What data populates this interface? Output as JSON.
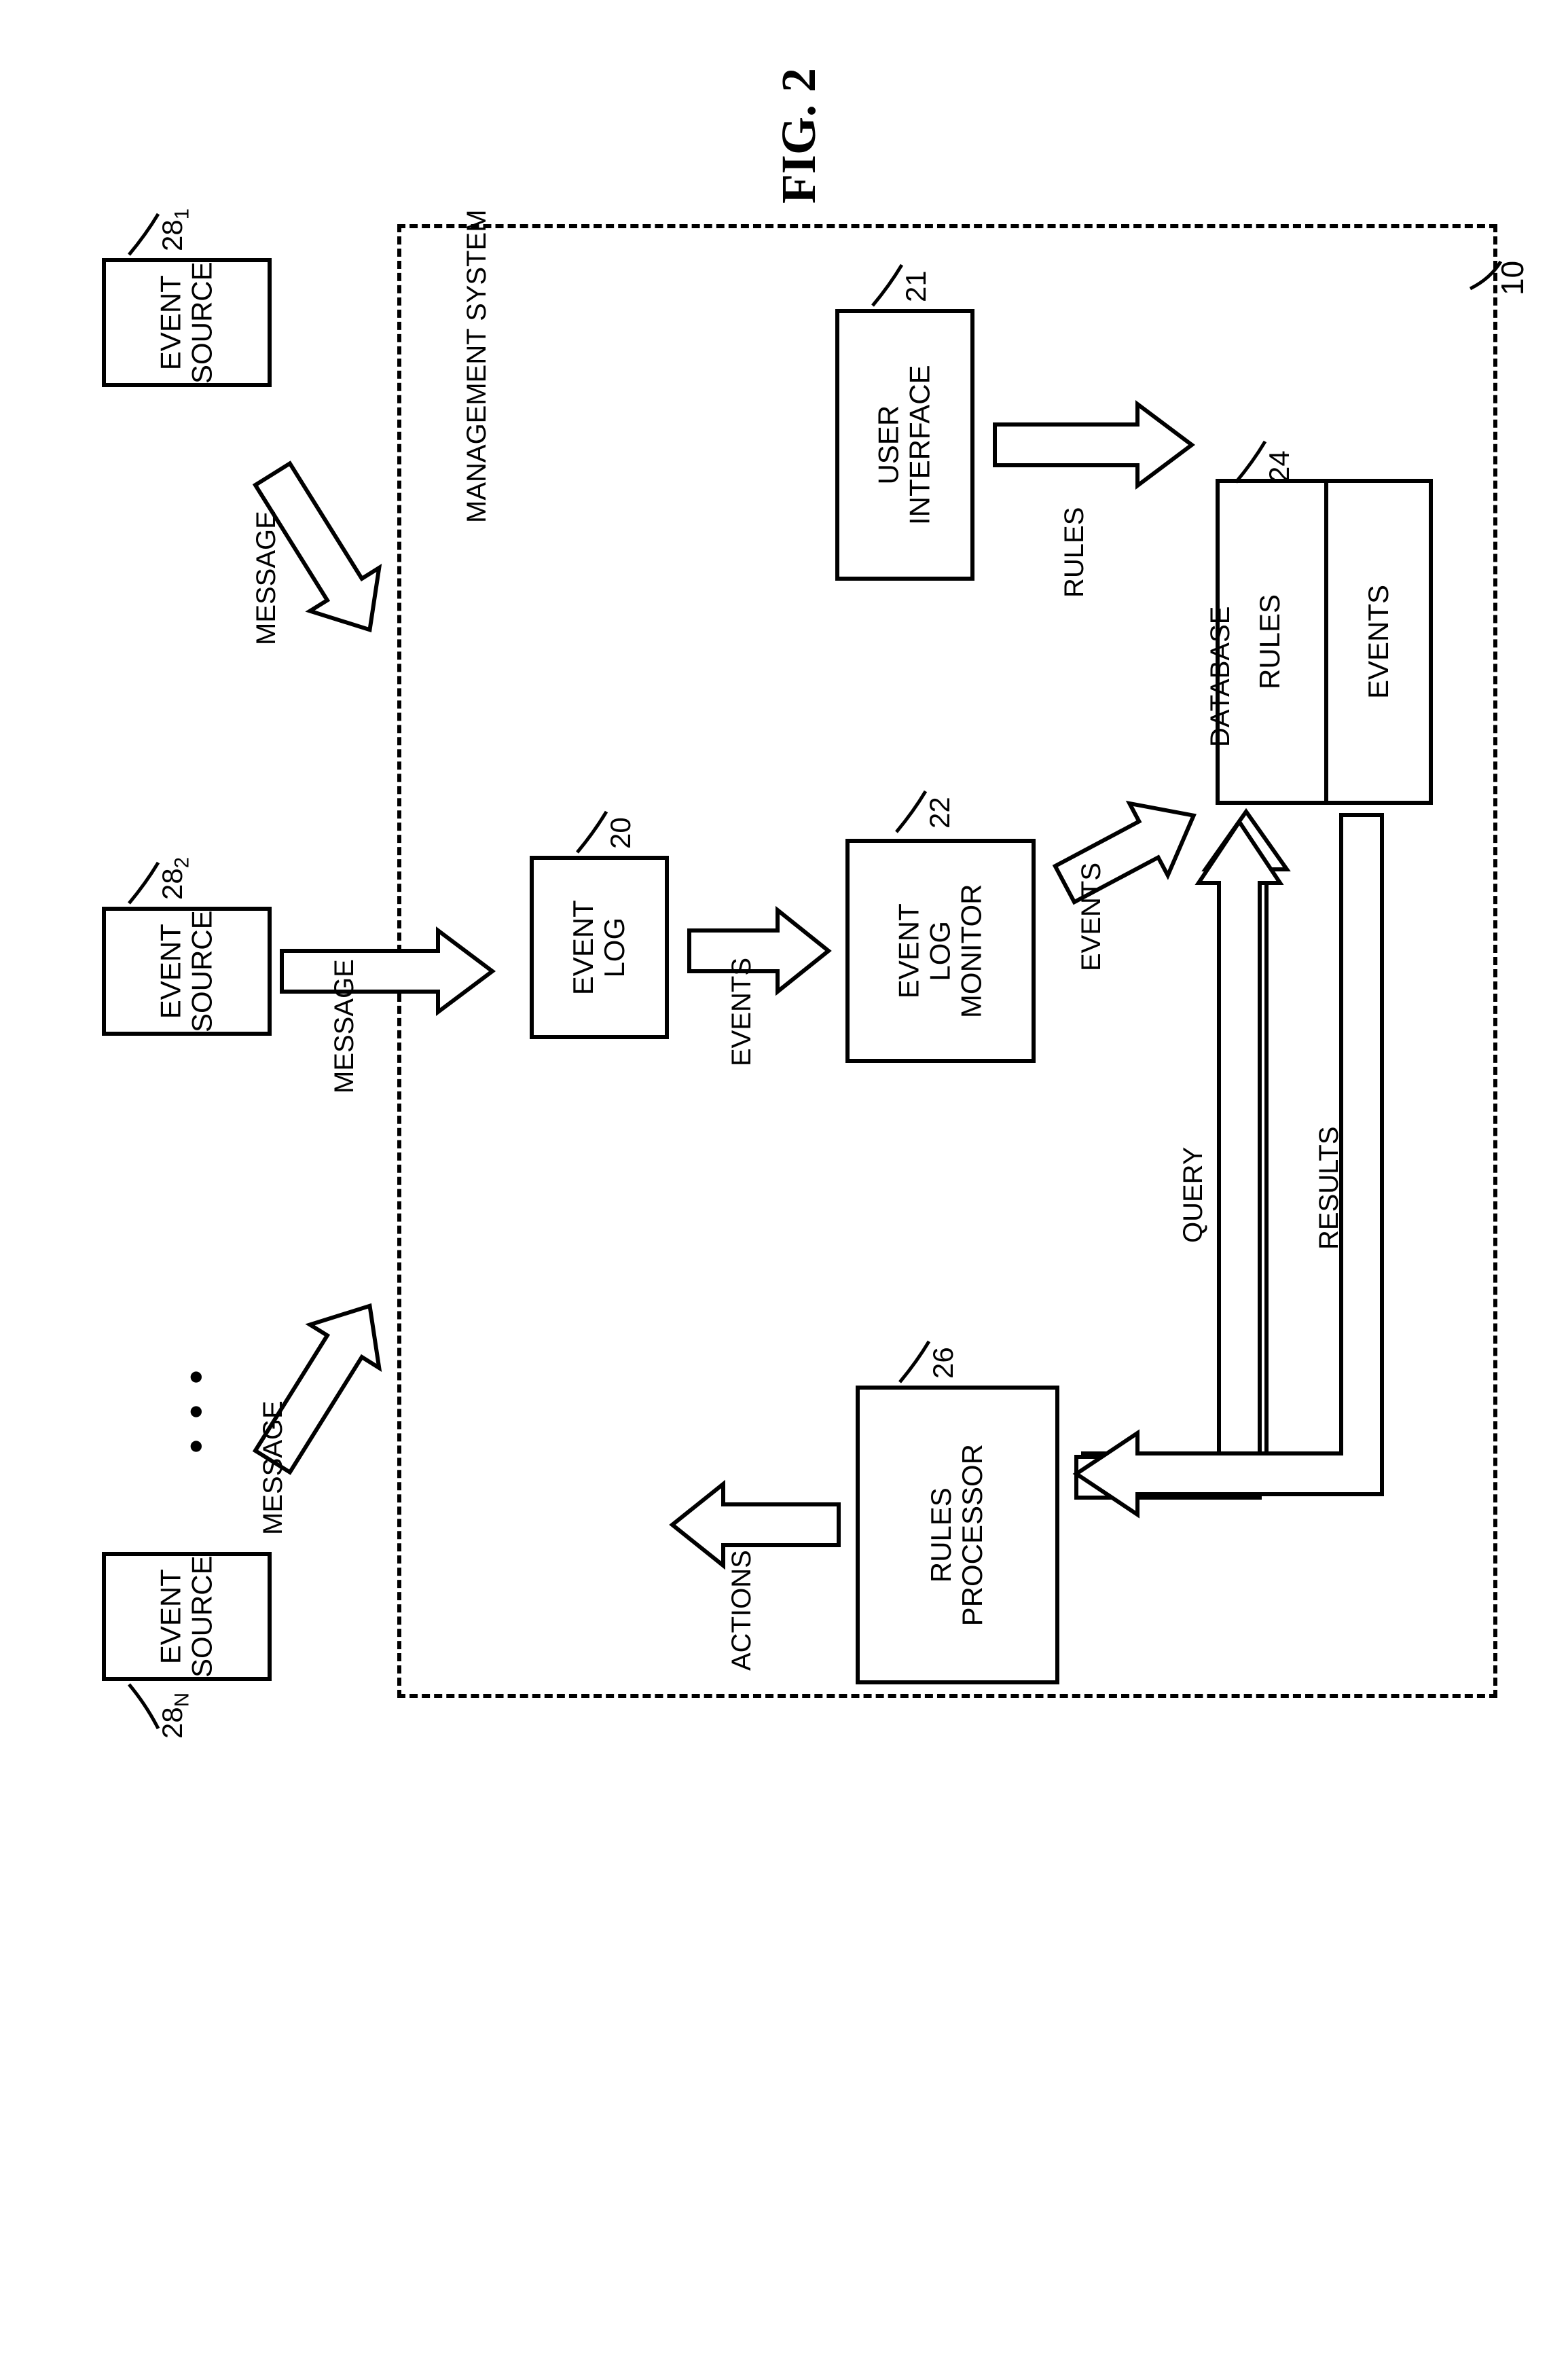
{
  "figure_title": "FIG. 2",
  "system_label": "MANAGEMENT SYSTEM",
  "boxes": {
    "event_source": "EVENT\nSOURCE",
    "event_log": "EVENT\nLOG",
    "event_log_monitor": "EVENT\nLOG\nMONITOR",
    "user_interface": "USER\nINTERFACE",
    "rules_processor": "RULES\nPROCESSOR",
    "database": "DATABASE",
    "db_rules": "RULES",
    "db_events": "EVENTS"
  },
  "arrows": {
    "message": "MESSAGE",
    "events": "EVENTS",
    "rules": "RULES",
    "actions": "ACTIONS",
    "query": "QUERY",
    "results": "RESULTS"
  },
  "refs": {
    "system": "10",
    "ui": "21",
    "event_log": "20",
    "elm": "22",
    "db": "24",
    "rp": "26",
    "es1": "28",
    "es1_sub": "1",
    "es2": "28",
    "es2_sub": "2",
    "esn": "28",
    "esn_sub": "N"
  },
  "style": {
    "box_font_size": 42,
    "label_font_size": 40,
    "ref_font_size": 42,
    "stroke": "#000000",
    "stroke_width": 6,
    "arrow_fill": "#ffffff"
  }
}
